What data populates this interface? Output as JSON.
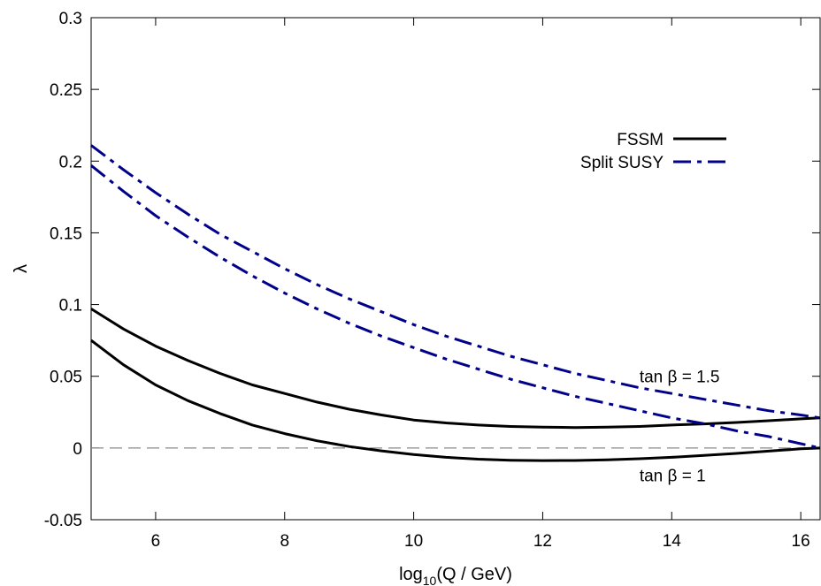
{
  "chart_data": {
    "type": "line",
    "xlabel_base": "log",
    "xlabel_sub": "10",
    "xlabel_rest": "(Q / GeV)",
    "ylabel": "λ",
    "xlim": [
      5,
      16.3
    ],
    "ylim": [
      -0.05,
      0.3
    ],
    "xticks": [
      6,
      8,
      10,
      12,
      14,
      16
    ],
    "yticks": [
      -0.05,
      0,
      0.05,
      0.1,
      0.15,
      0.2,
      0.25,
      0.3
    ],
    "ytick_labels": [
      "-0.05",
      "0",
      "0.05",
      "0.1",
      "0.15",
      "0.2",
      "0.25",
      "0.3"
    ],
    "grid": false,
    "legend_position": "top-right",
    "reference_line": {
      "y": 0,
      "style": "dashed",
      "color": "#888888"
    },
    "series": [
      {
        "name": "FSSM",
        "legend": true,
        "color": "#000000",
        "dash": "solid",
        "x": [
          5,
          5.5,
          6,
          6.5,
          7,
          7.5,
          8,
          8.5,
          9,
          9.5,
          10,
          10.5,
          11,
          11.5,
          12,
          12.5,
          13,
          13.5,
          14,
          14.5,
          15,
          15.5,
          16,
          16.3
        ],
        "y": [
          0.097,
          0.083,
          0.071,
          0.061,
          0.052,
          0.044,
          0.038,
          0.032,
          0.027,
          0.023,
          0.0195,
          0.0175,
          0.016,
          0.015,
          0.0145,
          0.0143,
          0.0145,
          0.015,
          0.016,
          0.0168,
          0.0178,
          0.019,
          0.0203,
          0.021
        ]
      },
      {
        "name": "FSSM",
        "legend": false,
        "color": "#000000",
        "dash": "solid",
        "x": [
          5,
          5.5,
          6,
          6.5,
          7,
          7.5,
          8,
          8.5,
          9,
          9.5,
          10,
          10.5,
          11,
          11.5,
          12,
          12.5,
          13,
          13.5,
          14,
          14.5,
          15,
          15.5,
          16,
          16.3
        ],
        "y": [
          0.075,
          0.058,
          0.044,
          0.033,
          0.024,
          0.016,
          0.01,
          0.005,
          0.001,
          -0.002,
          -0.0045,
          -0.0065,
          -0.0078,
          -0.0085,
          -0.0088,
          -0.0087,
          -0.0083,
          -0.0075,
          -0.0065,
          -0.0052,
          -0.0038,
          -0.0022,
          -0.0006,
          0.0
        ]
      },
      {
        "name": "Split SUSY",
        "legend": true,
        "color": "#00008b",
        "dash": "dashdot",
        "x": [
          5,
          5.5,
          6,
          6.5,
          7,
          7.5,
          8,
          8.5,
          9,
          9.5,
          10,
          10.5,
          11,
          11.5,
          12,
          12.5,
          13,
          13.5,
          14,
          14.5,
          15,
          15.5,
          16,
          16.3
        ],
        "y": [
          0.211,
          0.194,
          0.178,
          0.163,
          0.149,
          0.137,
          0.125,
          0.114,
          0.104,
          0.095,
          0.086,
          0.078,
          0.071,
          0.064,
          0.058,
          0.052,
          0.047,
          0.042,
          0.038,
          0.034,
          0.03,
          0.026,
          0.023,
          0.021
        ]
      },
      {
        "name": "Split SUSY",
        "legend": false,
        "color": "#00008b",
        "dash": "dashdot",
        "x": [
          5,
          5.5,
          6,
          6.5,
          7,
          7.5,
          8,
          8.5,
          9,
          9.5,
          10,
          10.5,
          11,
          11.5,
          12,
          12.5,
          13,
          13.5,
          14,
          14.5,
          15,
          15.5,
          16,
          16.3
        ],
        "y": [
          0.197,
          0.179,
          0.162,
          0.147,
          0.133,
          0.12,
          0.108,
          0.097,
          0.087,
          0.078,
          0.07,
          0.062,
          0.055,
          0.048,
          0.042,
          0.036,
          0.031,
          0.026,
          0.021,
          0.017,
          0.012,
          0.008,
          0.003,
          0.0
        ]
      }
    ],
    "annotations": [
      {
        "text": "tan β = 1.5",
        "x": 13.5,
        "y": 0.05
      },
      {
        "text": "tan β = 1",
        "x": 13.5,
        "y": -0.019
      }
    ]
  }
}
